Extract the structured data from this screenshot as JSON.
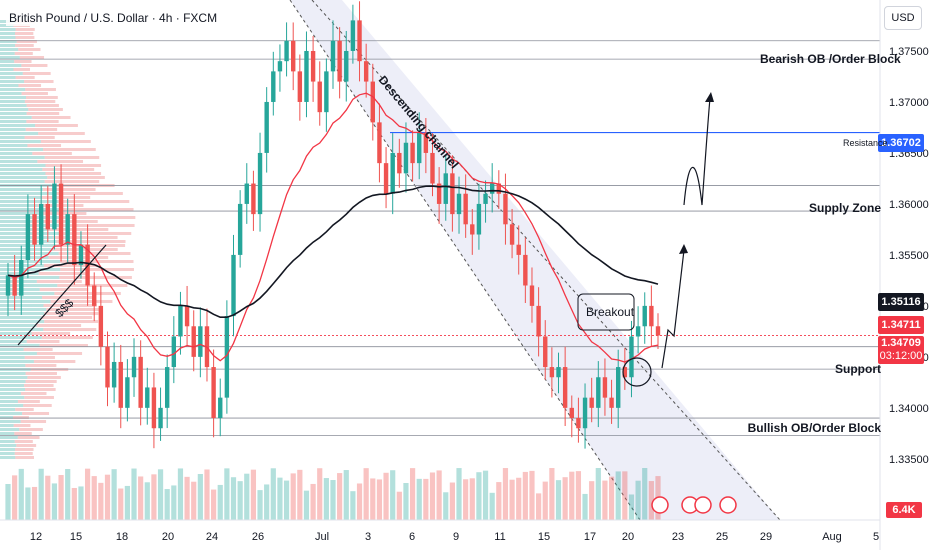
{
  "header": {
    "title": "British Pound / U.S. Dollar · 4h · FXCM",
    "currency": "USD"
  },
  "colors": {
    "up": "#26a69a",
    "down": "#ef5350",
    "ema": "#f23645",
    "ma_long": "#131722",
    "resistance_line": "#2962ff",
    "channel_fill": "#e8eaf6",
    "volume_profile_up": "#80cbc4",
    "volume_profile_down": "#ef9a9a"
  },
  "chart_data": {
    "type": "candlestick",
    "symbol": "GBPUSD",
    "timeframe": "4h",
    "y_axis": {
      "range": [
        1.329,
        1.38
      ],
      "ticks": [
        "1.37500",
        "1.37000",
        "1.36500",
        "1.36000",
        "1.35500",
        "1.35000",
        "1.34500",
        "1.34000",
        "1.33500"
      ],
      "tick_values": [
        1.375,
        1.37,
        1.365,
        1.36,
        1.355,
        1.35,
        1.345,
        1.34,
        1.335
      ]
    },
    "x_axis": {
      "tick_labels": [
        "12",
        "15",
        "18",
        "20",
        "24",
        "26",
        "Jul",
        "3",
        "6",
        "9",
        "11",
        "15",
        "17",
        "20",
        "23",
        "25",
        "29",
        "Aug",
        "5"
      ]
    },
    "price_labels": {
      "resistance": "1.36702",
      "ma_value": "1.35116",
      "last_price": "1.34711",
      "marked_price": "1.34709",
      "countdown": "03:12:00",
      "volume": "6.4K"
    },
    "levels": [
      {
        "label": "Bearish OB /Order Block",
        "price": 1.376
      },
      {
        "label": "",
        "price": 1.3742
      },
      {
        "label": "Resistance",
        "price": 1.367
      },
      {
        "label": "Supply Zone",
        "price": 1.3618
      },
      {
        "label": "",
        "price": 1.3593
      },
      {
        "label": "",
        "price": 1.346
      },
      {
        "label": "Support",
        "price": 1.3438
      },
      {
        "label": "Bullish OB/Order Block",
        "price": 1.339
      },
      {
        "label": "",
        "price": 1.3373
      }
    ],
    "annotations": {
      "channel": "Descending channel",
      "breakout": "Breakout",
      "liquidity": "$$$"
    },
    "closes": [
      1.353,
      1.351,
      1.3545,
      1.359,
      1.356,
      1.36,
      1.3575,
      1.362,
      1.356,
      1.359,
      1.354,
      1.356,
      1.352,
      1.35,
      1.346,
      1.342,
      1.3445,
      1.34,
      1.343,
      1.345,
      1.34,
      1.342,
      1.338,
      1.34,
      1.344,
      1.347,
      1.35,
      1.348,
      1.345,
      1.348,
      1.344,
      1.339,
      1.341,
      1.349,
      1.355,
      1.36,
      1.362,
      1.359,
      1.365,
      1.37,
      1.373,
      1.374,
      1.376,
      1.373,
      1.37,
      1.375,
      1.372,
      1.369,
      1.373,
      1.376,
      1.372,
      1.375,
      1.378,
      1.374,
      1.372,
      1.368,
      1.364,
      1.361,
      1.365,
      1.363,
      1.366,
      1.364,
      1.367,
      1.365,
      1.362,
      1.36,
      1.363,
      1.359,
      1.361,
      1.358,
      1.357,
      1.36,
      1.361,
      1.362,
      1.361,
      1.358,
      1.356,
      1.355,
      1.352,
      1.35,
      1.347,
      1.344,
      1.343,
      1.344,
      1.34,
      1.339,
      1.338,
      1.341,
      1.34,
      1.343,
      1.341,
      1.34,
      1.344,
      1.343,
      1.347,
      1.348,
      1.35,
      1.348,
      1.3471
    ]
  }
}
